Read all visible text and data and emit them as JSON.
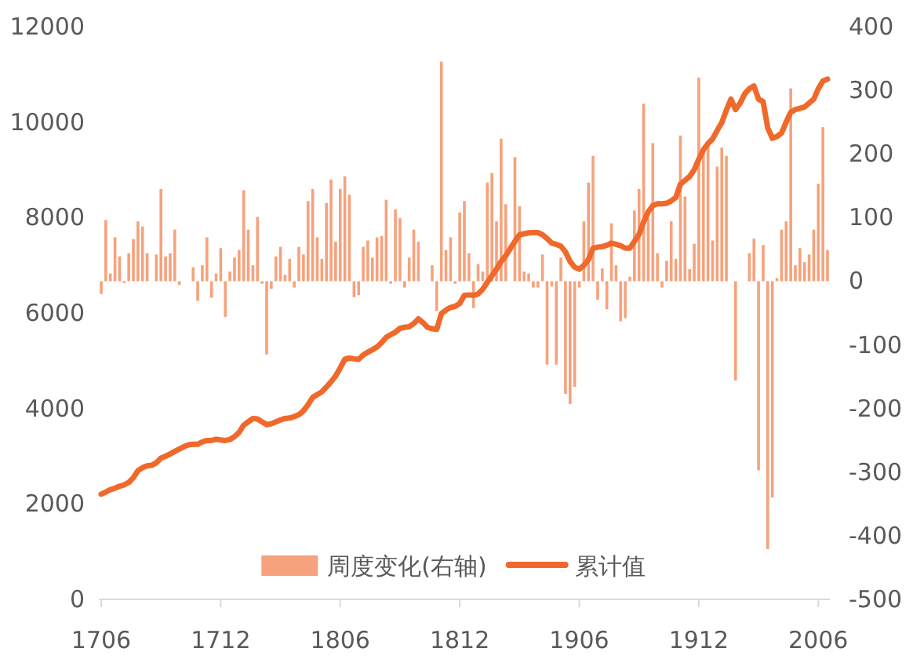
{
  "chart_data": {
    "type": "bar",
    "categories": [
      "1706",
      null,
      null,
      null,
      null,
      null,
      null,
      null,
      null,
      null,
      null,
      null,
      null,
      null,
      null,
      null,
      null,
      null,
      null,
      null,
      null,
      null,
      null,
      null,
      null,
      null,
      "1712",
      null,
      null,
      null,
      null,
      null,
      null,
      null,
      null,
      null,
      null,
      null,
      null,
      null,
      null,
      null,
      null,
      null,
      null,
      null,
      null,
      null,
      null,
      null,
      null,
      null,
      "1806",
      null,
      null,
      null,
      null,
      null,
      null,
      null,
      null,
      null,
      null,
      null,
      null,
      null,
      null,
      null,
      null,
      null,
      null,
      null,
      null,
      null,
      null,
      null,
      null,
      null,
      "1812",
      null,
      null,
      null,
      null,
      null,
      null,
      null,
      null,
      null,
      null,
      null,
      null,
      null,
      null,
      null,
      null,
      null,
      null,
      null,
      null,
      null,
      null,
      null,
      null,
      null,
      "1906",
      null,
      null,
      null,
      null,
      null,
      null,
      null,
      null,
      null,
      null,
      null,
      null,
      null,
      null,
      null,
      null,
      null,
      null,
      null,
      null,
      null,
      null,
      null,
      null,
      null,
      "1912",
      null,
      null,
      null,
      null,
      null,
      null,
      null,
      null,
      null,
      null,
      null,
      null,
      null,
      null,
      null,
      null,
      null,
      null,
      null,
      null,
      null,
      null,
      null,
      null,
      null,
      "2006",
      null,
      null
    ],
    "series": [
      {
        "name": "周度变化(右轴)",
        "axis": "y2",
        "color": "#f6a27c",
        "values": [
          -20,
          96,
          12,
          69,
          39,
          -3,
          44,
          66,
          94,
          86,
          44,
          null,
          42,
          145,
          39,
          44,
          81,
          -6,
          null,
          null,
          22,
          -31,
          25,
          69,
          -26,
          12,
          52,
          -56,
          15,
          37,
          49,
          143,
          81,
          25,
          101,
          -4,
          -115,
          -12,
          39,
          54,
          10,
          35,
          -10,
          54,
          42,
          126,
          145,
          69,
          35,
          123,
          160,
          62,
          145,
          165,
          136,
          -25,
          -22,
          54,
          64,
          37,
          69,
          71,
          128,
          -4,
          113,
          99,
          -10,
          37,
          81,
          62,
          null,
          null,
          25,
          -47,
          345,
          49,
          69,
          -4,
          108,
          126,
          44,
          -42,
          27,
          15,
          155,
          170,
          94,
          224,
          121,
          null,
          195,
          118,
          15,
          12,
          -10,
          -10,
          42,
          -131,
          -8,
          -131,
          37,
          -177,
          -193,
          -166,
          -10,
          94,
          155,
          197,
          -29,
          20,
          -44,
          91,
          25,
          -63,
          -58,
          7,
          111,
          145,
          279,
          99,
          217,
          44,
          -10,
          32,
          94,
          35,
          229,
          133,
          19,
          59,
          320,
          205,
          214,
          64,
          180,
          210,
          197,
          null,
          -156,
          null,
          null,
          44,
          67,
          -297,
          57,
          -421,
          -340,
          5,
          81,
          94,
          303,
          25,
          52,
          30,
          42,
          81,
          153,
          242,
          49
        ]
      },
      {
        "name": "累计值",
        "type": "line",
        "color": "#f0692b",
        "values": [
          2204,
          2250,
          2300,
          2330,
          2370,
          2400,
          2450,
          2550,
          2697,
          2760,
          2800,
          2810,
          2862,
          2960,
          3000,
          3048,
          3100,
          3150,
          3200,
          3240,
          3250,
          3250,
          3300,
          3330,
          3330,
          3355,
          3340,
          3330,
          3350,
          3410,
          3500,
          3650,
          3720,
          3790,
          3780,
          3720,
          3662,
          3680,
          3720,
          3760,
          3790,
          3800,
          3830,
          3870,
          3950,
          4080,
          4232,
          4290,
          4350,
          4450,
          4560,
          4680,
          4850,
          5030,
          5055,
          5040,
          5030,
          5120,
          5180,
          5230,
          5290,
          5380,
          5490,
          5548,
          5600,
          5680,
          5700,
          5713,
          5780,
          5877,
          5800,
          5700,
          5670,
          5658,
          5987,
          6060,
          6118,
          6140,
          6200,
          6370,
          6380,
          6370,
          6400,
          6500,
          6645,
          6780,
          6919,
          7080,
          7200,
          7350,
          7500,
          7640,
          7660,
          7680,
          7686,
          7686,
          7640,
          7560,
          7467,
          7440,
          7400,
          7280,
          7080,
          6960,
          6919,
          7000,
          7120,
          7358,
          7380,
          7391,
          7420,
          7467,
          7440,
          7410,
          7360,
          7360,
          7500,
          7650,
          7906,
          8120,
          8250,
          8289,
          8289,
          8300,
          8350,
          8420,
          8700,
          8780,
          8860,
          9000,
          9222,
          9420,
          9550,
          9650,
          9825,
          9989,
          10250,
          10482,
          10263,
          10400,
          10592,
          10700,
          10757,
          10482,
          10428,
          9879,
          9660,
          9700,
          9770,
          10000,
          10208,
          10263,
          10290,
          10318,
          10400,
          10482,
          10700,
          10860,
          10899
        ]
      }
    ],
    "ylim": [
      0,
      12000
    ],
    "yticks": [
      0,
      2000,
      4000,
      6000,
      8000,
      10000,
      12000
    ],
    "y2lim": [
      -500,
      400
    ],
    "y2ticks": [
      -500,
      -400,
      -300,
      -200,
      -100,
      0,
      100,
      200,
      300,
      400
    ],
    "legend": "bottom"
  }
}
